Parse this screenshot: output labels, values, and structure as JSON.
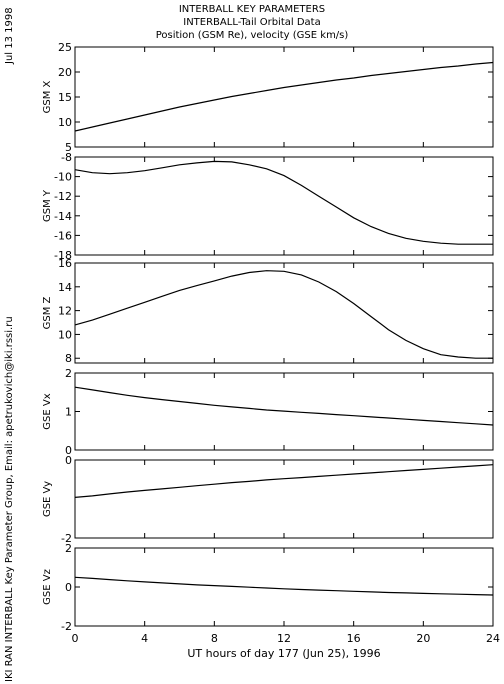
{
  "header": {
    "title": "INTERBALL KEY PARAMETERS",
    "subtitle": "INTERBALL-Tail Orbital Data",
    "variables": "Position (GSM Re), velocity (GSE km/s)"
  },
  "side": {
    "date": "Jul 13 1998",
    "credit": "IKI RAN INTERBALL Key Parameter Group, Email: apetrukovich@iki.rssi.ru"
  },
  "chart_data": [
    {
      "type": "line",
      "ylabel": "GSM X",
      "ylim": [
        5,
        25
      ],
      "yticks": [
        5,
        10,
        15,
        20,
        25
      ],
      "x": [
        0,
        1,
        2,
        3,
        4,
        5,
        6,
        7,
        8,
        9,
        10,
        11,
        12,
        13,
        14,
        15,
        16,
        17,
        18,
        19,
        20,
        21,
        22,
        23,
        24
      ],
      "values": [
        8.2,
        9.0,
        9.8,
        10.6,
        11.4,
        12.2,
        13.0,
        13.7,
        14.4,
        15.1,
        15.7,
        16.3,
        16.9,
        17.4,
        17.9,
        18.4,
        18.8,
        19.3,
        19.7,
        20.1,
        20.5,
        20.9,
        21.2,
        21.6,
        21.9
      ]
    },
    {
      "type": "line",
      "ylabel": "GSM Y",
      "ylim": [
        -18,
        -8
      ],
      "yticks": [
        -18,
        -16,
        -14,
        -12,
        -10,
        -8
      ],
      "x": [
        0,
        1,
        2,
        3,
        4,
        5,
        6,
        7,
        8,
        9,
        10,
        11,
        12,
        13,
        14,
        15,
        16,
        17,
        18,
        19,
        20,
        21,
        22,
        23,
        24
      ],
      "values": [
        -9.3,
        -9.6,
        -9.7,
        -9.6,
        -9.4,
        -9.1,
        -8.8,
        -8.6,
        -8.45,
        -8.5,
        -8.8,
        -9.2,
        -9.9,
        -10.9,
        -12.0,
        -13.1,
        -14.2,
        -15.1,
        -15.8,
        -16.3,
        -16.6,
        -16.8,
        -16.9,
        -16.9,
        -16.9
      ]
    },
    {
      "type": "line",
      "ylabel": "GSM Z",
      "ylim": [
        7.6,
        16
      ],
      "yticks": [
        8,
        10,
        12,
        14,
        16
      ],
      "x": [
        0,
        1,
        2,
        3,
        4,
        5,
        6,
        7,
        8,
        9,
        10,
        11,
        12,
        13,
        14,
        15,
        16,
        17,
        18,
        19,
        20,
        21,
        22,
        23,
        24
      ],
      "values": [
        10.8,
        11.2,
        11.7,
        12.2,
        12.7,
        13.2,
        13.7,
        14.1,
        14.5,
        14.9,
        15.2,
        15.35,
        15.3,
        15.0,
        14.4,
        13.6,
        12.6,
        11.5,
        10.4,
        9.5,
        8.8,
        8.3,
        8.1,
        8.0,
        8.0
      ]
    },
    {
      "type": "line",
      "ylabel": "GSE Vx",
      "ylim": [
        0,
        2
      ],
      "yticks": [
        0,
        1,
        2
      ],
      "x": [
        0,
        1,
        2,
        3,
        4,
        5,
        6,
        7,
        8,
        9,
        10,
        11,
        12,
        13,
        14,
        15,
        16,
        17,
        18,
        19,
        20,
        21,
        22,
        23,
        24
      ],
      "values": [
        1.63,
        1.56,
        1.49,
        1.42,
        1.36,
        1.31,
        1.26,
        1.21,
        1.16,
        1.12,
        1.08,
        1.04,
        1.01,
        0.98,
        0.95,
        0.92,
        0.89,
        0.86,
        0.83,
        0.8,
        0.77,
        0.74,
        0.71,
        0.68,
        0.65
      ]
    },
    {
      "type": "line",
      "ylabel": "GSE Vy",
      "ylim": [
        -2,
        0
      ],
      "yticks": [
        -2,
        0
      ],
      "x": [
        0,
        1,
        2,
        3,
        4,
        5,
        6,
        7,
        8,
        9,
        10,
        11,
        12,
        13,
        14,
        15,
        16,
        17,
        18,
        19,
        20,
        21,
        22,
        23,
        24
      ],
      "values": [
        -0.96,
        -0.92,
        -0.87,
        -0.82,
        -0.78,
        -0.74,
        -0.7,
        -0.66,
        -0.62,
        -0.58,
        -0.55,
        -0.51,
        -0.48,
        -0.45,
        -0.42,
        -0.39,
        -0.36,
        -0.33,
        -0.3,
        -0.27,
        -0.24,
        -0.21,
        -0.18,
        -0.15,
        -0.12
      ]
    },
    {
      "type": "line",
      "ylabel": "GSE Vz",
      "ylim": [
        -2,
        2
      ],
      "yticks": [
        -2,
        0,
        2
      ],
      "x": [
        0,
        1,
        2,
        3,
        4,
        5,
        6,
        7,
        8,
        9,
        10,
        11,
        12,
        13,
        14,
        15,
        16,
        17,
        18,
        19,
        20,
        21,
        22,
        23,
        24
      ],
      "values": [
        0.5,
        0.44,
        0.38,
        0.32,
        0.26,
        0.21,
        0.16,
        0.11,
        0.07,
        0.03,
        -0.01,
        -0.05,
        -0.09,
        -0.13,
        -0.16,
        -0.19,
        -0.22,
        -0.25,
        -0.28,
        -0.3,
        -0.33,
        -0.35,
        -0.37,
        -0.39,
        -0.41
      ]
    }
  ],
  "xaxis": {
    "label": "UT hours of day 177 (Jun 25), 1996",
    "xlim": [
      0,
      24
    ],
    "ticks": [
      0,
      4,
      8,
      12,
      16,
      20,
      24
    ]
  }
}
